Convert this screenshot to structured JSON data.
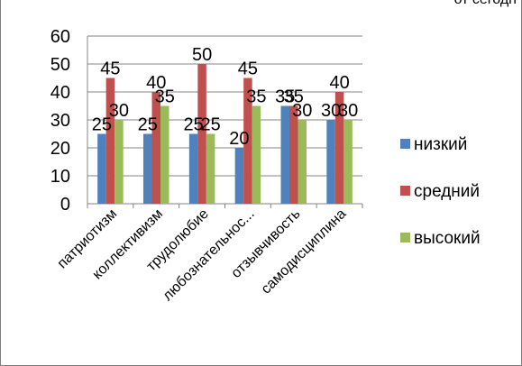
{
  "header_fragment": "от сегодн",
  "chart_data": {
    "type": "bar",
    "categories": [
      "патриотизм",
      "коллективизм",
      "трудолюбие",
      "любознательнос...",
      "отзывчивость",
      "самодисциплина"
    ],
    "series": [
      {
        "name": "низкий",
        "color": "#4F81BD",
        "values": [
          25,
          25,
          25,
          20,
          35,
          30
        ]
      },
      {
        "name": "средний",
        "color": "#C0504D",
        "values": [
          45,
          40,
          50,
          45,
          35,
          40
        ]
      },
      {
        "name": "высокий",
        "color": "#9BBB59",
        "values": [
          30,
          35,
          25,
          35,
          30,
          30
        ]
      }
    ],
    "ylim": [
      0,
      60
    ],
    "yticks": [
      0,
      10,
      20,
      30,
      40,
      50,
      60
    ],
    "grid": true,
    "legend": "right",
    "data_labels": true
  }
}
